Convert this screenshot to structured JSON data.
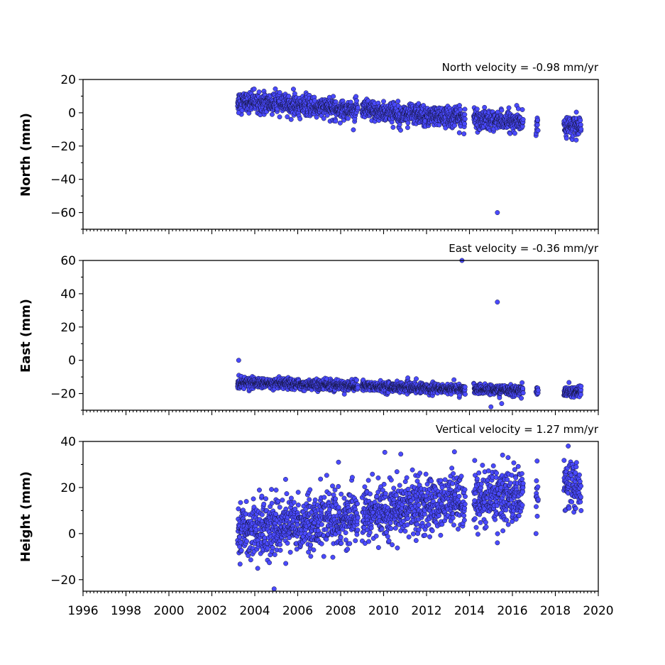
{
  "chart_data": [
    {
      "type": "scatter",
      "panel": "north",
      "title": "North velocity = -0.98 mm/yr",
      "ylabel": "North (mm)",
      "xlim": [
        1996,
        2020
      ],
      "ylim": [
        -70,
        20
      ],
      "yticks": [
        20,
        0,
        -20,
        -40,
        -60
      ],
      "yticklabels": [
        "20",
        "0",
        "−20",
        "−40",
        "−60"
      ],
      "xticks": [
        1996,
        1998,
        2000,
        2002,
        2004,
        2006,
        2008,
        2010,
        2012,
        2014,
        2016,
        2018,
        2020
      ],
      "xticklabels": [],
      "series": [
        {
          "color": "#4a4aff",
          "trend": {
            "start": 2003.3,
            "value_at_start": 7.0,
            "rate_per_year": -0.98
          },
          "scatter": 3.0,
          "segments": [
            [
              2003.2,
              2008.8
            ],
            [
              2009.0,
              2013.8
            ],
            [
              2014.2,
              2016.5
            ],
            [
              2017.1,
              2017.2
            ],
            [
              2018.4,
              2019.2
            ]
          ],
          "outliers": [
            [
              2003.25,
              0
            ],
            [
              2004.2,
              12.5
            ],
            [
              2015.3,
              -60
            ],
            [
              2015.5,
              1.5
            ]
          ]
        }
      ]
    },
    {
      "type": "scatter",
      "panel": "east",
      "title": "East velocity = -0.36 mm/yr",
      "ylabel": "East (mm)",
      "xlim": [
        1996,
        2020
      ],
      "ylim": [
        -30,
        60
      ],
      "yticks": [
        60,
        40,
        20,
        0,
        -20
      ],
      "yticklabels": [
        "60",
        "40",
        "20",
        "0",
        "−20"
      ],
      "xticks": [
        1996,
        1998,
        2000,
        2002,
        2004,
        2006,
        2008,
        2010,
        2012,
        2014,
        2016,
        2018,
        2020
      ],
      "xticklabels": [],
      "series": [
        {
          "color": "#4a4aff",
          "trend": {
            "start": 2003.3,
            "value_at_start": -13.5,
            "rate_per_year": -0.36
          },
          "scatter": 1.5,
          "segments": [
            [
              2003.2,
              2008.8
            ],
            [
              2009.0,
              2013.8
            ],
            [
              2014.2,
              2016.5
            ],
            [
              2017.1,
              2017.2
            ],
            [
              2018.4,
              2019.2
            ]
          ],
          "outliers": [
            [
              2003.25,
              0
            ],
            [
              2013.65,
              60
            ],
            [
              2015.3,
              35
            ],
            [
              2015.0,
              -28
            ],
            [
              2015.5,
              -26
            ]
          ]
        }
      ]
    },
    {
      "type": "scatter",
      "panel": "height",
      "title": "Vertical velocity = 1.27 mm/yr",
      "ylabel": "Height (mm)",
      "xlim": [
        1996,
        2020
      ],
      "ylim": [
        -25,
        40
      ],
      "yticks": [
        40,
        20,
        0,
        -20
      ],
      "yticklabels": [
        "40",
        "20",
        "0",
        "−20"
      ],
      "xticks": [
        1996,
        1998,
        2000,
        2002,
        2004,
        2006,
        2008,
        2010,
        2012,
        2014,
        2016,
        2018,
        2020
      ],
      "xticklabels": [
        "1996",
        "1998",
        "2000",
        "2002",
        "2004",
        "2006",
        "2008",
        "2010",
        "2012",
        "2014",
        "2016",
        "2018",
        "2020"
      ],
      "series": [
        {
          "color": "#4a4aff",
          "trend": {
            "start": 2003.3,
            "value_at_start": 1.0,
            "rate_per_year": 1.27
          },
          "scatter": 6.0,
          "segments": [
            [
              2003.2,
              2008.8
            ],
            [
              2009.0,
              2013.8
            ],
            [
              2014.2,
              2016.5
            ],
            [
              2017.1,
              2017.2
            ],
            [
              2018.4,
              2019.2
            ]
          ],
          "outliers": [
            [
              2004.9,
              -24
            ],
            [
              2007.9,
              31
            ],
            [
              2010.8,
              34.5
            ],
            [
              2013.3,
              35.5
            ],
            [
              2015.8,
              33
            ],
            [
              2017.1,
              0
            ],
            [
              2018.6,
              38
            ],
            [
              2015.3,
              -4
            ]
          ]
        }
      ]
    }
  ]
}
